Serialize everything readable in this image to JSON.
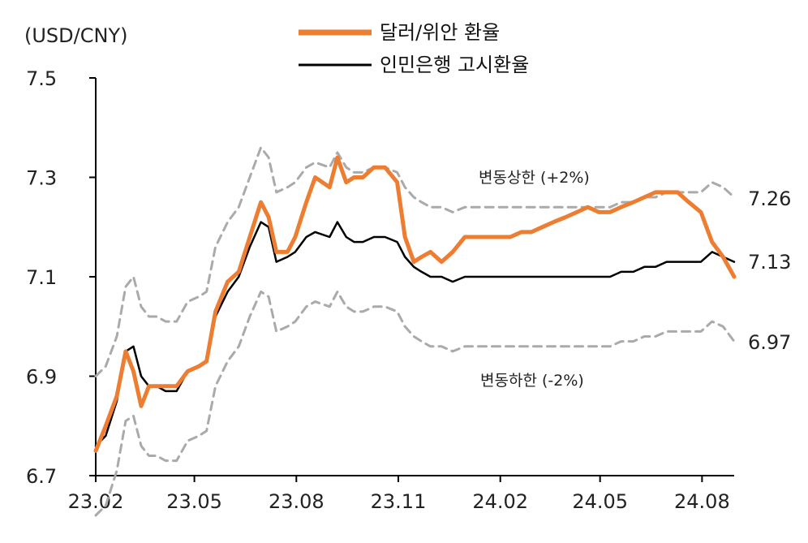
{
  "chart_data": {
    "type": "line",
    "unit_label": "(USD/CNY)",
    "ylim": [
      6.7,
      7.5
    ],
    "yticks": [
      "7.5",
      "7.3",
      "7.1",
      "6.9",
      "6.7"
    ],
    "ytick_values": [
      7.5,
      7.3,
      7.1,
      6.9,
      6.7
    ],
    "xticks": [
      "23.02",
      "23.05",
      "23.08",
      "23.11",
      "24.02",
      "24.05",
      "24.08"
    ],
    "xtick_values": [
      "2023-02",
      "2023-05",
      "2023-08",
      "2023-11",
      "2024-02",
      "2024-05",
      "2024-08"
    ],
    "xlim": [
      "2023-02-01",
      "2024-08-30"
    ],
    "legend": {
      "position": "top-center",
      "entries": [
        {
          "label": "달러/위안 환율",
          "color": "#ED7D31"
        },
        {
          "label": "인민은행 고시환율",
          "color": "#000000"
        }
      ]
    },
    "annotations": {
      "upper": "변동상한 (+2%)",
      "lower": "변동하한 (-2%)"
    },
    "end_labels": [
      "7.26",
      "7.13",
      "6.97"
    ],
    "series": [
      {
        "name": "달러/위안 환율",
        "color": "#ED7D31",
        "points": [
          [
            "2023-02-01",
            6.75
          ],
          [
            "2023-02-10",
            6.8
          ],
          [
            "2023-02-20",
            6.86
          ],
          [
            "2023-02-28",
            6.95
          ],
          [
            "2023-03-07",
            6.91
          ],
          [
            "2023-03-14",
            6.84
          ],
          [
            "2023-03-21",
            6.88
          ],
          [
            "2023-03-28",
            6.88
          ],
          [
            "2023-04-05",
            6.88
          ],
          [
            "2023-04-15",
            6.88
          ],
          [
            "2023-04-25",
            6.91
          ],
          [
            "2023-05-05",
            6.92
          ],
          [
            "2023-05-12",
            6.93
          ],
          [
            "2023-05-20",
            7.03
          ],
          [
            "2023-05-31",
            7.09
          ],
          [
            "2023-06-10",
            7.11
          ],
          [
            "2023-06-20",
            7.18
          ],
          [
            "2023-06-30",
            7.25
          ],
          [
            "2023-07-07",
            7.22
          ],
          [
            "2023-07-14",
            7.15
          ],
          [
            "2023-07-24",
            7.15
          ],
          [
            "2023-07-31",
            7.18
          ],
          [
            "2023-08-10",
            7.25
          ],
          [
            "2023-08-18",
            7.3
          ],
          [
            "2023-08-31",
            7.28
          ],
          [
            "2023-09-07",
            7.34
          ],
          [
            "2023-09-15",
            7.29
          ],
          [
            "2023-09-22",
            7.3
          ],
          [
            "2023-09-30",
            7.3
          ],
          [
            "2023-10-10",
            7.32
          ],
          [
            "2023-10-20",
            7.32
          ],
          [
            "2023-10-31",
            7.29
          ],
          [
            "2023-11-07",
            7.18
          ],
          [
            "2023-11-15",
            7.13
          ],
          [
            "2023-11-22",
            7.14
          ],
          [
            "2023-11-30",
            7.15
          ],
          [
            "2023-12-10",
            7.13
          ],
          [
            "2023-12-20",
            7.15
          ],
          [
            "2023-12-31",
            7.18
          ],
          [
            "2024-01-10",
            7.18
          ],
          [
            "2024-01-20",
            7.18
          ],
          [
            "2024-01-31",
            7.18
          ],
          [
            "2024-02-10",
            7.18
          ],
          [
            "2024-02-20",
            7.19
          ],
          [
            "2024-02-29",
            7.19
          ],
          [
            "2024-03-10",
            7.2
          ],
          [
            "2024-03-20",
            7.21
          ],
          [
            "2024-03-31",
            7.22
          ],
          [
            "2024-04-10",
            7.23
          ],
          [
            "2024-04-20",
            7.24
          ],
          [
            "2024-04-30",
            7.23
          ],
          [
            "2024-05-10",
            7.23
          ],
          [
            "2024-05-20",
            7.24
          ],
          [
            "2024-05-31",
            7.25
          ],
          [
            "2024-06-10",
            7.26
          ],
          [
            "2024-06-20",
            7.27
          ],
          [
            "2024-06-30",
            7.27
          ],
          [
            "2024-07-10",
            7.27
          ],
          [
            "2024-07-20",
            7.25
          ],
          [
            "2024-07-31",
            7.23
          ],
          [
            "2024-08-10",
            7.17
          ],
          [
            "2024-08-20",
            7.14
          ],
          [
            "2024-08-30",
            7.1
          ]
        ]
      },
      {
        "name": "인민은행 고시환율",
        "color": "#000000",
        "points": [
          [
            "2023-02-01",
            6.76
          ],
          [
            "2023-02-10",
            6.78
          ],
          [
            "2023-02-20",
            6.85
          ],
          [
            "2023-02-28",
            6.95
          ],
          [
            "2023-03-07",
            6.96
          ],
          [
            "2023-03-14",
            6.9
          ],
          [
            "2023-03-21",
            6.88
          ],
          [
            "2023-03-28",
            6.88
          ],
          [
            "2023-04-05",
            6.87
          ],
          [
            "2023-04-15",
            6.87
          ],
          [
            "2023-04-25",
            6.91
          ],
          [
            "2023-05-05",
            6.92
          ],
          [
            "2023-05-12",
            6.93
          ],
          [
            "2023-05-20",
            7.02
          ],
          [
            "2023-05-31",
            7.07
          ],
          [
            "2023-06-10",
            7.1
          ],
          [
            "2023-06-20",
            7.16
          ],
          [
            "2023-06-30",
            7.21
          ],
          [
            "2023-07-07",
            7.2
          ],
          [
            "2023-07-14",
            7.13
          ],
          [
            "2023-07-24",
            7.14
          ],
          [
            "2023-07-31",
            7.15
          ],
          [
            "2023-08-10",
            7.18
          ],
          [
            "2023-08-18",
            7.19
          ],
          [
            "2023-08-31",
            7.18
          ],
          [
            "2023-09-07",
            7.21
          ],
          [
            "2023-09-15",
            7.18
          ],
          [
            "2023-09-22",
            7.17
          ],
          [
            "2023-09-30",
            7.17
          ],
          [
            "2023-10-10",
            7.18
          ],
          [
            "2023-10-20",
            7.18
          ],
          [
            "2023-10-31",
            7.17
          ],
          [
            "2023-11-07",
            7.14
          ],
          [
            "2023-11-15",
            7.12
          ],
          [
            "2023-11-22",
            7.11
          ],
          [
            "2023-11-30",
            7.1
          ],
          [
            "2023-12-10",
            7.1
          ],
          [
            "2023-12-20",
            7.09
          ],
          [
            "2023-12-31",
            7.1
          ],
          [
            "2024-01-10",
            7.1
          ],
          [
            "2024-01-20",
            7.1
          ],
          [
            "2024-01-31",
            7.1
          ],
          [
            "2024-02-10",
            7.1
          ],
          [
            "2024-02-20",
            7.1
          ],
          [
            "2024-02-29",
            7.1
          ],
          [
            "2024-03-10",
            7.1
          ],
          [
            "2024-03-20",
            7.1
          ],
          [
            "2024-03-31",
            7.1
          ],
          [
            "2024-04-10",
            7.1
          ],
          [
            "2024-04-20",
            7.1
          ],
          [
            "2024-04-30",
            7.1
          ],
          [
            "2024-05-10",
            7.1
          ],
          [
            "2024-05-20",
            7.11
          ],
          [
            "2024-05-31",
            7.11
          ],
          [
            "2024-06-10",
            7.12
          ],
          [
            "2024-06-20",
            7.12
          ],
          [
            "2024-06-30",
            7.13
          ],
          [
            "2024-07-10",
            7.13
          ],
          [
            "2024-07-20",
            7.13
          ],
          [
            "2024-07-31",
            7.13
          ],
          [
            "2024-08-10",
            7.15
          ],
          [
            "2024-08-20",
            7.14
          ],
          [
            "2024-08-30",
            7.13
          ]
        ]
      },
      {
        "name": "변동상한 (+2%)",
        "color": "#AAAAAA",
        "points": [
          [
            "2023-02-01",
            6.9
          ],
          [
            "2023-02-10",
            6.92
          ],
          [
            "2023-02-20",
            6.98
          ],
          [
            "2023-02-28",
            7.08
          ],
          [
            "2023-03-07",
            7.1
          ],
          [
            "2023-03-14",
            7.04
          ],
          [
            "2023-03-21",
            7.02
          ],
          [
            "2023-03-28",
            7.02
          ],
          [
            "2023-04-05",
            7.01
          ],
          [
            "2023-04-15",
            7.01
          ],
          [
            "2023-04-25",
            7.05
          ],
          [
            "2023-05-05",
            7.06
          ],
          [
            "2023-05-12",
            7.07
          ],
          [
            "2023-05-20",
            7.16
          ],
          [
            "2023-05-31",
            7.21
          ],
          [
            "2023-06-10",
            7.24
          ],
          [
            "2023-06-20",
            7.3
          ],
          [
            "2023-06-30",
            7.36
          ],
          [
            "2023-07-07",
            7.34
          ],
          [
            "2023-07-14",
            7.27
          ],
          [
            "2023-07-24",
            7.28
          ],
          [
            "2023-07-31",
            7.29
          ],
          [
            "2023-08-10",
            7.32
          ],
          [
            "2023-08-18",
            7.33
          ],
          [
            "2023-08-31",
            7.32
          ],
          [
            "2023-09-07",
            7.35
          ],
          [
            "2023-09-15",
            7.32
          ],
          [
            "2023-09-22",
            7.31
          ],
          [
            "2023-09-30",
            7.31
          ],
          [
            "2023-10-10",
            7.32
          ],
          [
            "2023-10-20",
            7.32
          ],
          [
            "2023-10-31",
            7.31
          ],
          [
            "2023-11-07",
            7.28
          ],
          [
            "2023-11-15",
            7.26
          ],
          [
            "2023-11-22",
            7.25
          ],
          [
            "2023-11-30",
            7.24
          ],
          [
            "2023-12-10",
            7.24
          ],
          [
            "2023-12-20",
            7.23
          ],
          [
            "2023-12-31",
            7.24
          ],
          [
            "2024-01-10",
            7.24
          ],
          [
            "2024-01-20",
            7.24
          ],
          [
            "2024-01-31",
            7.24
          ],
          [
            "2024-02-10",
            7.24
          ],
          [
            "2024-02-20",
            7.24
          ],
          [
            "2024-02-29",
            7.24
          ],
          [
            "2024-03-10",
            7.24
          ],
          [
            "2024-03-20",
            7.24
          ],
          [
            "2024-03-31",
            7.24
          ],
          [
            "2024-04-10",
            7.24
          ],
          [
            "2024-04-20",
            7.24
          ],
          [
            "2024-04-30",
            7.24
          ],
          [
            "2024-05-10",
            7.24
          ],
          [
            "2024-05-20",
            7.25
          ],
          [
            "2024-05-31",
            7.25
          ],
          [
            "2024-06-10",
            7.26
          ],
          [
            "2024-06-20",
            7.26
          ],
          [
            "2024-06-30",
            7.27
          ],
          [
            "2024-07-10",
            7.27
          ],
          [
            "2024-07-20",
            7.27
          ],
          [
            "2024-07-31",
            7.27
          ],
          [
            "2024-08-10",
            7.29
          ],
          [
            "2024-08-20",
            7.28
          ],
          [
            "2024-08-30",
            7.26
          ]
        ]
      },
      {
        "name": "변동하한 (-2%)",
        "color": "#AAAAAA",
        "points": [
          [
            "2023-02-01",
            6.62
          ],
          [
            "2023-02-10",
            6.64
          ],
          [
            "2023-02-20",
            6.71
          ],
          [
            "2023-02-28",
            6.81
          ],
          [
            "2023-03-07",
            6.82
          ],
          [
            "2023-03-14",
            6.76
          ],
          [
            "2023-03-21",
            6.74
          ],
          [
            "2023-03-28",
            6.74
          ],
          [
            "2023-04-05",
            6.73
          ],
          [
            "2023-04-15",
            6.73
          ],
          [
            "2023-04-25",
            6.77
          ],
          [
            "2023-05-05",
            6.78
          ],
          [
            "2023-05-12",
            6.79
          ],
          [
            "2023-05-20",
            6.88
          ],
          [
            "2023-05-31",
            6.93
          ],
          [
            "2023-06-10",
            6.96
          ],
          [
            "2023-06-20",
            7.02
          ],
          [
            "2023-06-30",
            7.07
          ],
          [
            "2023-07-07",
            7.06
          ],
          [
            "2023-07-14",
            6.99
          ],
          [
            "2023-07-24",
            7.0
          ],
          [
            "2023-07-31",
            7.01
          ],
          [
            "2023-08-10",
            7.04
          ],
          [
            "2023-08-18",
            7.05
          ],
          [
            "2023-08-31",
            7.04
          ],
          [
            "2023-09-07",
            7.07
          ],
          [
            "2023-09-15",
            7.04
          ],
          [
            "2023-09-22",
            7.03
          ],
          [
            "2023-09-30",
            7.03
          ],
          [
            "2023-10-10",
            7.04
          ],
          [
            "2023-10-20",
            7.04
          ],
          [
            "2023-10-31",
            7.03
          ],
          [
            "2023-11-07",
            7.0
          ],
          [
            "2023-11-15",
            6.98
          ],
          [
            "2023-11-22",
            6.97
          ],
          [
            "2023-11-30",
            6.96
          ],
          [
            "2023-12-10",
            6.96
          ],
          [
            "2023-12-20",
            6.95
          ],
          [
            "2023-12-31",
            6.96
          ],
          [
            "2024-01-10",
            6.96
          ],
          [
            "2024-01-20",
            6.96
          ],
          [
            "2024-01-31",
            6.96
          ],
          [
            "2024-02-10",
            6.96
          ],
          [
            "2024-02-20",
            6.96
          ],
          [
            "2024-02-29",
            6.96
          ],
          [
            "2024-03-10",
            6.96
          ],
          [
            "2024-03-20",
            6.96
          ],
          [
            "2024-03-31",
            6.96
          ],
          [
            "2024-04-10",
            6.96
          ],
          [
            "2024-04-20",
            6.96
          ],
          [
            "2024-04-30",
            6.96
          ],
          [
            "2024-05-10",
            6.96
          ],
          [
            "2024-05-20",
            6.97
          ],
          [
            "2024-05-31",
            6.97
          ],
          [
            "2024-06-10",
            6.98
          ],
          [
            "2024-06-20",
            6.98
          ],
          [
            "2024-06-30",
            6.99
          ],
          [
            "2024-07-10",
            6.99
          ],
          [
            "2024-07-20",
            6.99
          ],
          [
            "2024-07-31",
            6.99
          ],
          [
            "2024-08-10",
            7.01
          ],
          [
            "2024-08-20",
            7.0
          ],
          [
            "2024-08-30",
            6.97
          ]
        ]
      }
    ]
  }
}
